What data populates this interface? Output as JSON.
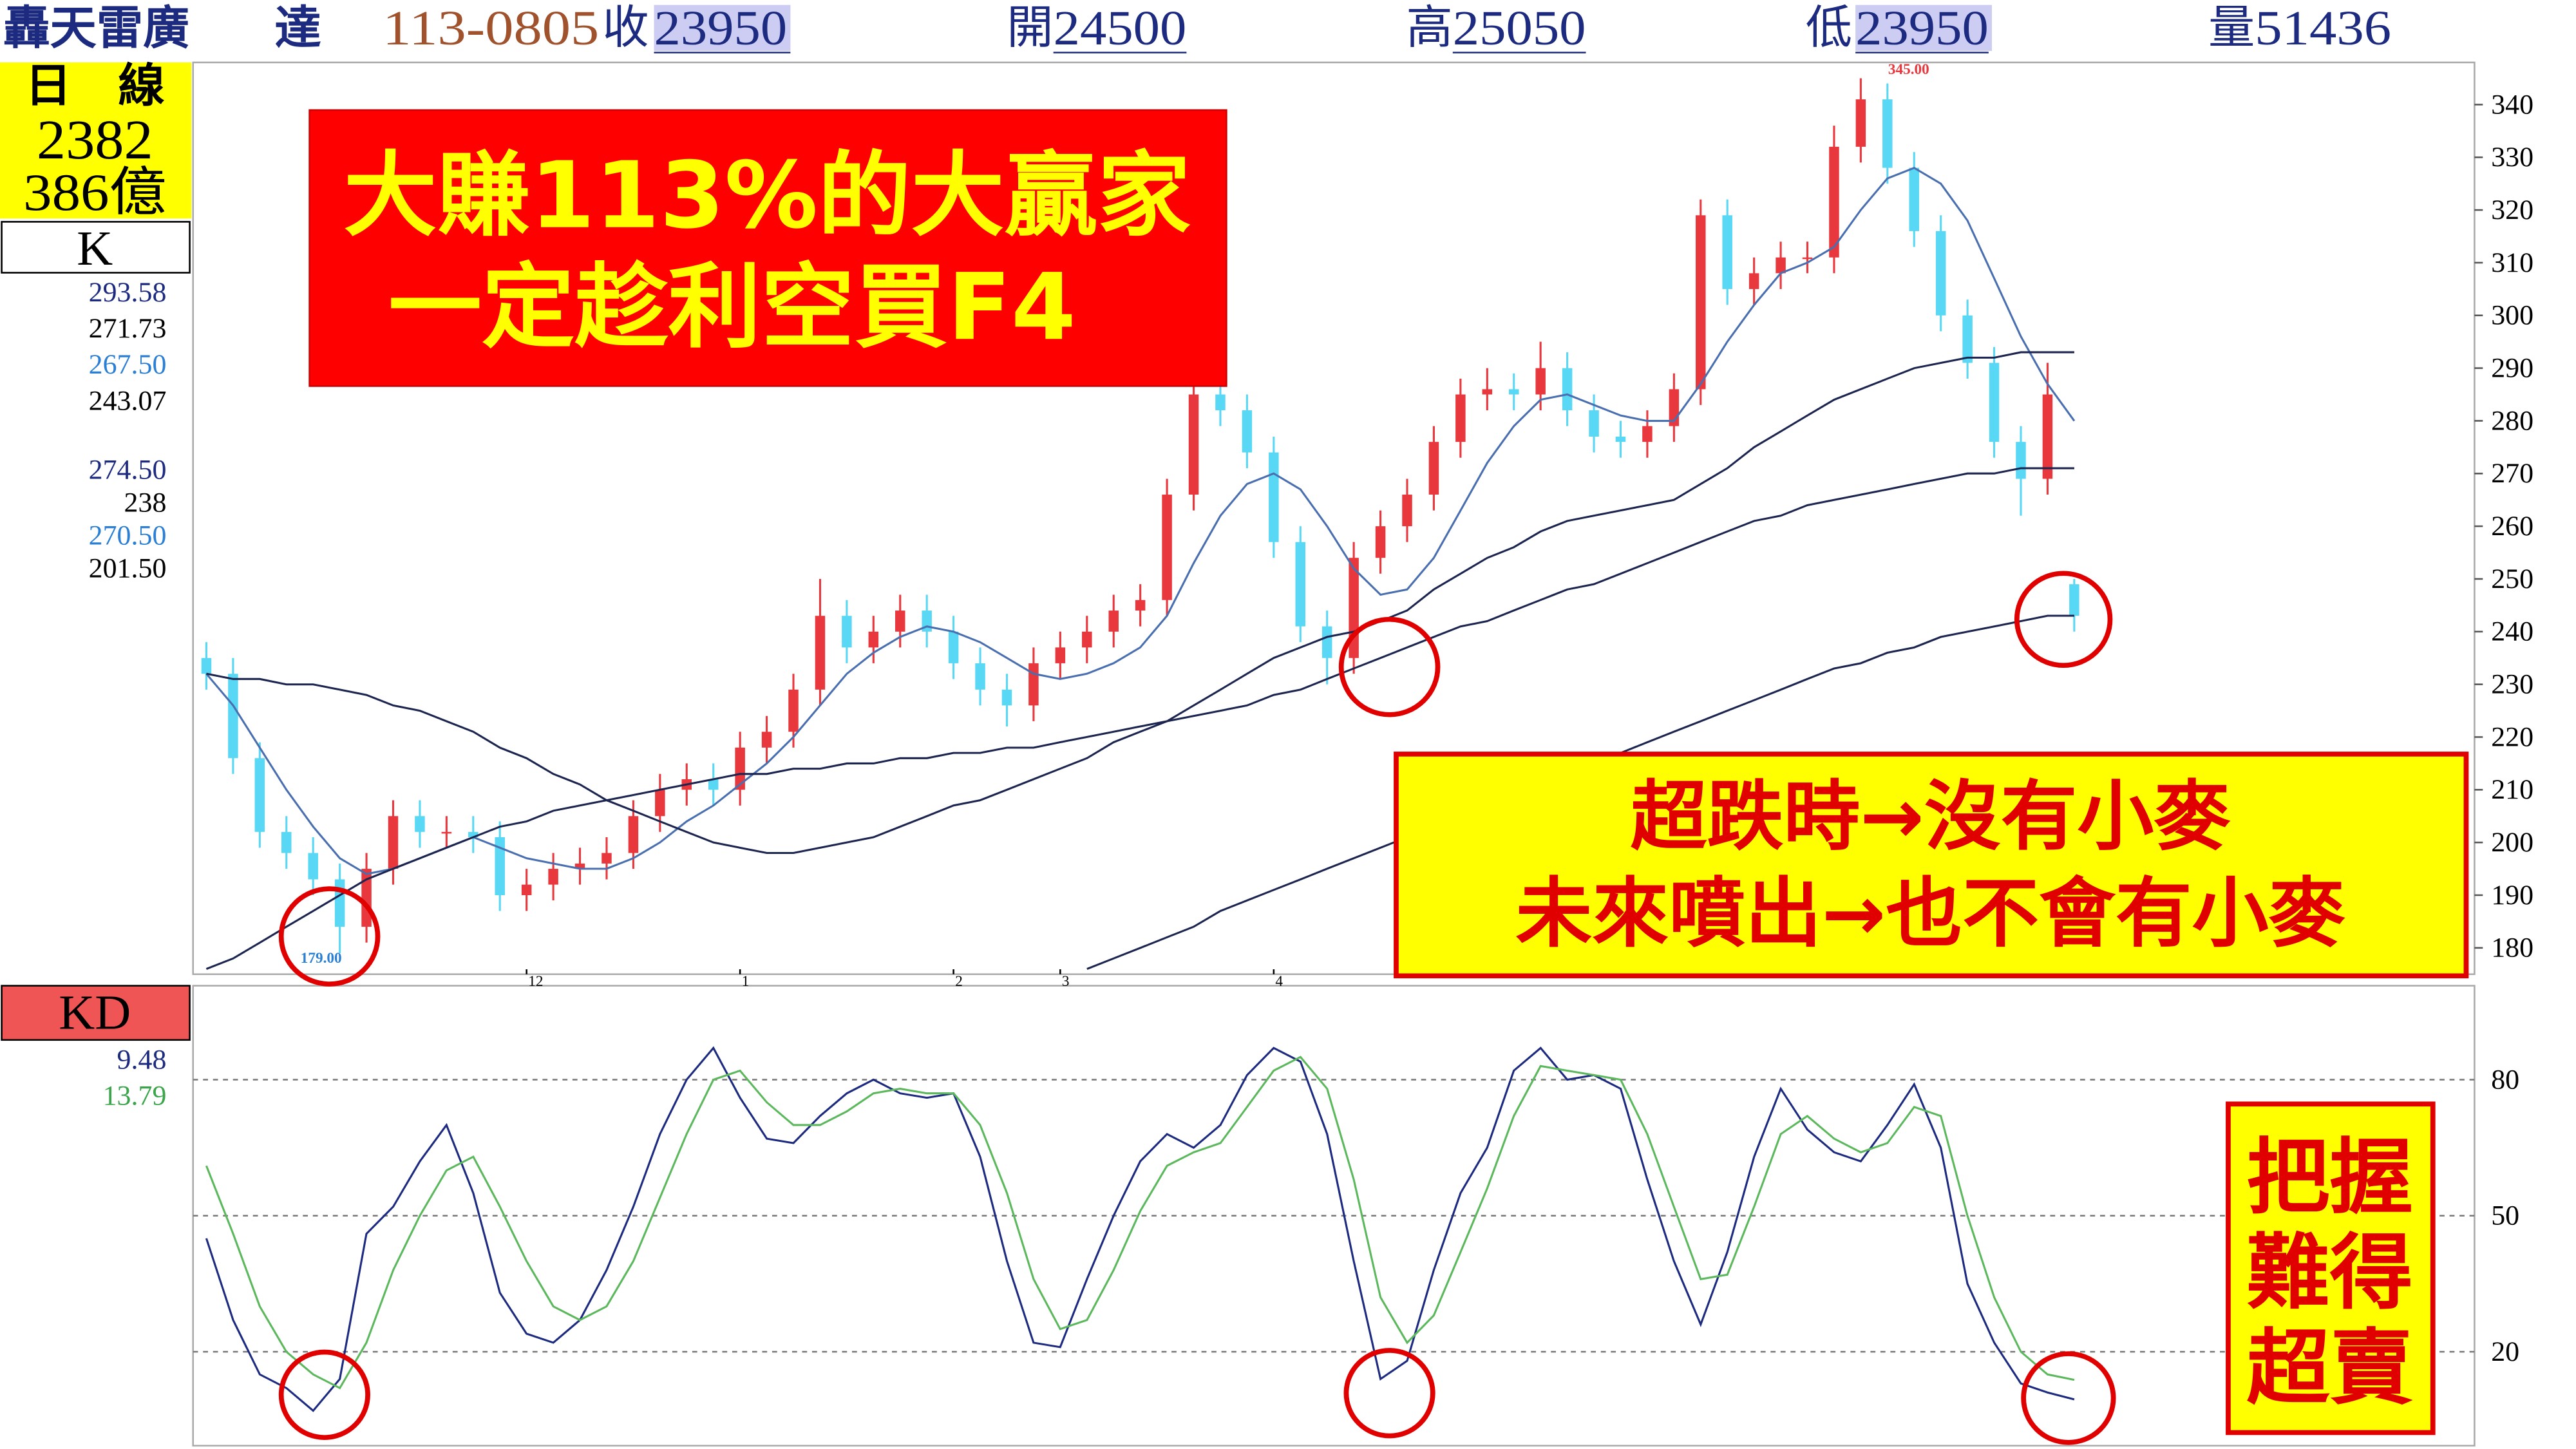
{
  "header": {
    "name": "轟天雷廣",
    "stock": "達",
    "date": "113-0805",
    "close_label": "收",
    "close": "23950",
    "open_label": "開",
    "open": "24500",
    "high_label": "高",
    "high": "25050",
    "low_label": "低",
    "low": "23950",
    "volume_label": "量",
    "volume": "51436"
  },
  "sidebar": {
    "period": "日　線",
    "code": "2382",
    "amount": "386億"
  },
  "callouts": {
    "main": [
      "大賺113%的大贏家",
      "一定趁利空買F4"
    ],
    "bottom": [
      "超跌時→沒有小麥",
      "未來噴出→也不會有小麥"
    ],
    "kd": [
      "把握",
      "難得",
      "超賣"
    ]
  },
  "chart_data": [
    {
      "type": "candlestick",
      "title": "K",
      "legend_values": [
        "293.58",
        "271.73",
        "267.50",
        "243.07",
        "274.50",
        "238",
        "270.50",
        "201.50"
      ],
      "legend_colors": [
        "#1c2a80",
        "#000000",
        "#2a7fd4",
        "#000000",
        "#1c2a80",
        "#000000",
        "#2a7fd4",
        "#000000"
      ],
      "high_label": "345.00",
      "low_label": "179.00",
      "up_color": "#e8383d",
      "down_color": "#59d8f5",
      "xlim": [
        -0.5,
        85
      ],
      "ylim": [
        175,
        348
      ],
      "yticks": [
        180,
        190,
        200,
        210,
        220,
        230,
        240,
        250,
        260,
        270,
        280,
        290,
        300,
        310,
        320,
        330,
        340
      ],
      "grid": false,
      "month_starts": [
        {
          "index": 12,
          "label": "12"
        },
        {
          "index": 20,
          "label": "1"
        },
        {
          "index": 28,
          "label": "2"
        },
        {
          "index": 32,
          "label": "3"
        },
        {
          "index": 40,
          "label": "4"
        }
      ],
      "open": [
        235,
        232,
        216,
        202,
        198,
        193,
        184,
        195,
        205,
        202,
        202,
        201,
        190,
        192,
        195,
        196,
        198,
        205,
        210,
        212,
        210,
        218,
        221,
        229,
        243,
        237,
        240,
        244,
        240,
        234,
        229,
        226,
        234,
        237,
        240,
        244,
        246,
        266,
        285,
        282,
        274,
        257,
        241,
        235,
        254,
        260,
        266,
        276,
        285,
        286,
        285,
        290,
        282,
        277,
        276,
        279,
        286,
        319,
        305,
        308,
        311,
        311,
        332,
        341,
        328,
        316,
        300,
        291,
        276,
        269,
        249
      ],
      "high": [
        238,
        235,
        219,
        205,
        201,
        196,
        198,
        208,
        208,
        205,
        205,
        204,
        195,
        198,
        199,
        201,
        208,
        213,
        215,
        215,
        221,
        224,
        232,
        250,
        246,
        243,
        247,
        247,
        243,
        237,
        232,
        237,
        240,
        243,
        247,
        249,
        269,
        290,
        288,
        285,
        277,
        260,
        244,
        257,
        263,
        269,
        279,
        288,
        290,
        289,
        295,
        293,
        285,
        280,
        282,
        289,
        322,
        322,
        311,
        314,
        314,
        336,
        345,
        344,
        331,
        319,
        303,
        294,
        279,
        291,
        250
      ],
      "low": [
        229,
        213,
        199,
        195,
        190,
        179,
        181,
        192,
        199,
        199,
        198,
        187,
        187,
        189,
        192,
        193,
        195,
        202,
        207,
        207,
        207,
        215,
        218,
        226,
        234,
        234,
        237,
        237,
        231,
        226,
        222,
        223,
        231,
        234,
        237,
        241,
        243,
        263,
        279,
        271,
        254,
        238,
        230,
        232,
        251,
        257,
        263,
        273,
        282,
        282,
        282,
        279,
        274,
        273,
        273,
        276,
        283,
        302,
        302,
        305,
        308,
        308,
        329,
        325,
        313,
        297,
        288,
        273,
        262,
        266,
        240
      ],
      "close": [
        232,
        216,
        202,
        198,
        193,
        184,
        195,
        205,
        202,
        202,
        201,
        190,
        192,
        195,
        196,
        198,
        205,
        210,
        212,
        210,
        218,
        221,
        229,
        243,
        237,
        240,
        244,
        240,
        234,
        229,
        226,
        234,
        237,
        240,
        244,
        246,
        266,
        285,
        282,
        274,
        257,
        241,
        235,
        254,
        260,
        266,
        276,
        285,
        286,
        285,
        290,
        282,
        277,
        276,
        279,
        286,
        319,
        305,
        308,
        311,
        311,
        332,
        341,
        328,
        316,
        300,
        291,
        276,
        269,
        285,
        243
      ],
      "series": [
        {
          "color": "#4a6fb0",
          "values": [
            232,
            226,
            218,
            210,
            203,
            197,
            194,
            195,
            197,
            199,
            201,
            199,
            197,
            196,
            195,
            195,
            197,
            200,
            204,
            207,
            211,
            215,
            220,
            226,
            232,
            236,
            239,
            241,
            240,
            238,
            235,
            232,
            231,
            232,
            234,
            237,
            243,
            253,
            262,
            268,
            270,
            267,
            260,
            252,
            247,
            248,
            254,
            263,
            272,
            279,
            284,
            285,
            283,
            281,
            280,
            280,
            287,
            295,
            302,
            308,
            310,
            313,
            320,
            326,
            328,
            325,
            318,
            307,
            296,
            287,
            280
          ]
        },
        {
          "color": "#1c2550",
          "values": [
            232,
            231,
            231,
            230,
            230,
            229,
            228,
            226,
            225,
            223,
            221,
            218,
            216,
            213,
            211,
            208,
            206,
            204,
            202,
            200,
            199,
            198,
            198,
            199,
            200,
            201,
            203,
            205,
            207,
            208,
            210,
            212,
            214,
            216,
            219,
            221,
            223,
            226,
            229,
            232,
            235,
            237,
            239,
            240,
            242,
            244,
            248,
            251,
            254,
            256,
            259,
            261,
            262,
            263,
            264,
            265,
            268,
            271,
            275,
            278,
            281,
            284,
            286,
            288,
            290,
            291,
            292,
            292,
            293,
            293,
            293
          ]
        },
        {
          "color": "#1c2550",
          "values": [
            176,
            178,
            181,
            184,
            187,
            190,
            193,
            195,
            197,
            199,
            201,
            203,
            204,
            206,
            207,
            208,
            209,
            210,
            211,
            212,
            213,
            213,
            214,
            214,
            215,
            215,
            216,
            216,
            217,
            217,
            218,
            218,
            219,
            220,
            221,
            222,
            223,
            224,
            225,
            226,
            228,
            229,
            231,
            233,
            235,
            237,
            239,
            241,
            242,
            244,
            246,
            248,
            249,
            251,
            253,
            255,
            257,
            259,
            261,
            262,
            264,
            265,
            266,
            267,
            268,
            269,
            270,
            270,
            271,
            271,
            271
          ]
        },
        {
          "color": "#1c2550",
          "values": [
            null,
            null,
            null,
            null,
            null,
            null,
            null,
            null,
            null,
            null,
            null,
            null,
            null,
            null,
            null,
            null,
            null,
            null,
            null,
            null,
            null,
            null,
            null,
            null,
            null,
            null,
            null,
            null,
            null,
            null,
            null,
            null,
            null,
            176,
            178,
            180,
            182,
            184,
            187,
            189,
            191,
            193,
            195,
            197,
            199,
            201,
            203,
            205,
            207,
            209,
            211,
            213,
            215,
            217,
            219,
            221,
            223,
            225,
            227,
            229,
            231,
            233,
            234,
            236,
            237,
            239,
            240,
            241,
            242,
            243,
            243
          ]
        }
      ]
    },
    {
      "type": "line",
      "title": "KD",
      "legend_values": [
        "9.48",
        "13.79"
      ],
      "legend_colors": [
        "#1c2a80",
        "#3aa54a"
      ],
      "xlim": [
        -0.5,
        85
      ],
      "ylim": [
        0,
        100
      ],
      "yticks": [
        20,
        50,
        80
      ],
      "grid": true,
      "series": [
        {
          "color": "#1c2a80",
          "values": [
            45,
            27,
            15,
            12,
            7,
            14,
            46,
            52,
            62,
            70,
            55,
            33,
            24,
            22,
            27,
            38,
            52,
            68,
            80,
            87,
            76,
            67,
            66,
            72,
            77,
            80,
            77,
            76,
            77,
            63,
            40,
            22,
            21,
            36,
            50,
            62,
            68,
            65,
            70,
            81,
            87,
            84,
            68,
            40,
            14,
            18,
            38,
            55,
            65,
            82,
            87,
            80,
            81,
            78,
            58,
            40,
            26,
            42,
            63,
            78,
            69,
            64,
            62,
            70,
            79,
            65,
            35,
            22,
            13,
            11,
            9.48
          ]
        },
        {
          "color": "#5cb85c",
          "values": [
            61,
            46,
            30,
            20,
            15,
            12,
            22,
            38,
            50,
            60,
            63,
            52,
            40,
            30,
            27,
            30,
            40,
            54,
            68,
            80,
            82,
            75,
            70,
            70,
            73,
            77,
            78,
            77,
            77,
            70,
            55,
            36,
            25,
            27,
            38,
            51,
            61,
            64,
            66,
            74,
            82,
            85,
            78,
            58,
            32,
            22,
            28,
            42,
            56,
            72,
            83,
            82,
            81,
            80,
            68,
            52,
            36,
            37,
            52,
            68,
            72,
            67,
            64,
            66,
            74,
            72,
            50,
            32,
            20,
            15,
            13.79
          ]
        }
      ]
    }
  ]
}
